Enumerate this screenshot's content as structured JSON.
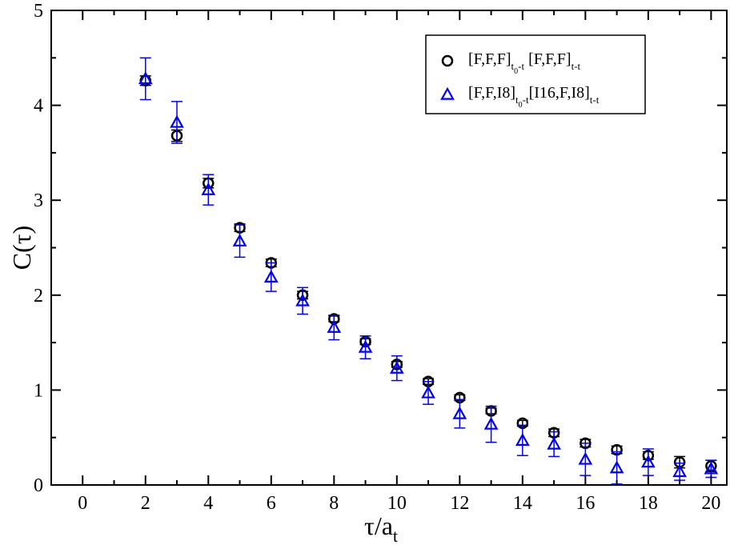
{
  "chart_data": {
    "type": "scatter",
    "xlabel": {
      "main": "τ/a",
      "sub": "t"
    },
    "ylabel": "C(τ)",
    "xlim": [
      -1,
      20.5
    ],
    "ylim": [
      0,
      5
    ],
    "xticks": [
      0,
      2,
      4,
      6,
      8,
      10,
      12,
      14,
      16,
      18,
      20
    ],
    "yticks": [
      0,
      1,
      2,
      3,
      4,
      5
    ],
    "grid": false,
    "legend_position": "top-right",
    "series": [
      {
        "name_parts": [
          {
            "text": "[F,F,F]",
            "sub": false
          },
          {
            "text": "t",
            "sub": true
          },
          {
            "text": "0",
            "subsub": true
          },
          {
            "text": "-t",
            "sub": true
          },
          {
            "text": " [F,F,F]",
            "sub": false
          },
          {
            "text": "t-t",
            "sub": true
          }
        ],
        "marker": "circle",
        "color": "#000000",
        "points": [
          {
            "x": 2,
            "y": 4.26,
            "err": 0.05
          },
          {
            "x": 3,
            "y": 3.68,
            "err": 0.06
          },
          {
            "x": 4,
            "y": 3.18,
            "err": 0.05
          },
          {
            "x": 5,
            "y": 2.71,
            "err": 0.04
          },
          {
            "x": 6,
            "y": 2.34,
            "err": 0.04
          },
          {
            "x": 7,
            "y": 2.0,
            "err": 0.04
          },
          {
            "x": 8,
            "y": 1.75,
            "err": 0.03
          },
          {
            "x": 9,
            "y": 1.51,
            "err": 0.03
          },
          {
            "x": 10,
            "y": 1.27,
            "err": 0.03
          },
          {
            "x": 11,
            "y": 1.09,
            "err": 0.03
          },
          {
            "x": 12,
            "y": 0.92,
            "err": 0.03
          },
          {
            "x": 13,
            "y": 0.78,
            "err": 0.03
          },
          {
            "x": 14,
            "y": 0.65,
            "err": 0.03
          },
          {
            "x": 15,
            "y": 0.55,
            "err": 0.04
          },
          {
            "x": 16,
            "y": 0.44,
            "err": 0.04
          },
          {
            "x": 17,
            "y": 0.37,
            "err": 0.04
          },
          {
            "x": 18,
            "y": 0.31,
            "err": 0.04
          },
          {
            "x": 19,
            "y": 0.24,
            "err": 0.06
          },
          {
            "x": 20,
            "y": 0.2,
            "err": 0.06
          }
        ]
      },
      {
        "name_parts": [
          {
            "text": "[F,F,I8]",
            "sub": false
          },
          {
            "text": "t",
            "sub": true
          },
          {
            "text": "0",
            "subsub": true
          },
          {
            "text": "-t",
            "sub": true
          },
          {
            "text": "[I16,F,I8]",
            "sub": false
          },
          {
            "text": "t-t",
            "sub": true
          }
        ],
        "marker": "triangle",
        "color": "#0000ff",
        "points": [
          {
            "x": 2,
            "y": 4.28,
            "err": 0.22
          },
          {
            "x": 3,
            "y": 3.82,
            "err": 0.22
          },
          {
            "x": 4,
            "y": 3.11,
            "err": 0.16
          },
          {
            "x": 5,
            "y": 2.57,
            "err": 0.17
          },
          {
            "x": 6,
            "y": 2.19,
            "err": 0.15
          },
          {
            "x": 7,
            "y": 1.94,
            "err": 0.14
          },
          {
            "x": 8,
            "y": 1.66,
            "err": 0.13
          },
          {
            "x": 9,
            "y": 1.45,
            "err": 0.12
          },
          {
            "x": 10,
            "y": 1.23,
            "err": 0.13
          },
          {
            "x": 11,
            "y": 0.97,
            "err": 0.12
          },
          {
            "x": 12,
            "y": 0.75,
            "err": 0.15
          },
          {
            "x": 13,
            "y": 0.64,
            "err": 0.19
          },
          {
            "x": 14,
            "y": 0.47,
            "err": 0.16
          },
          {
            "x": 15,
            "y": 0.43,
            "err": 0.13
          },
          {
            "x": 16,
            "y": 0.27,
            "err": 0.17
          },
          {
            "x": 17,
            "y": 0.18,
            "err": 0.17
          },
          {
            "x": 18,
            "y": 0.24,
            "err": 0.14
          },
          {
            "x": 19,
            "y": 0.14,
            "err": 0.09
          },
          {
            "x": 20,
            "y": 0.17,
            "err": 0.09
          }
        ]
      }
    ]
  }
}
